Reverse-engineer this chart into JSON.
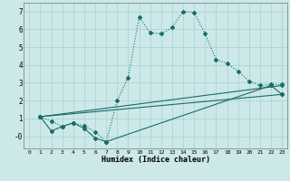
{
  "xlabel": "Humidex (Indice chaleur)",
  "background_color": "#cce8e8",
  "line_color": "#1a6b6b",
  "xlim": [
    -0.5,
    23.5
  ],
  "ylim": [
    -0.7,
    7.5
  ],
  "yticks": [
    0,
    1,
    2,
    3,
    4,
    5,
    6,
    7
  ],
  "ytick_labels": [
    "-0",
    "1",
    "2",
    "3",
    "4",
    "5",
    "6",
    "7"
  ],
  "xticks": [
    0,
    1,
    2,
    3,
    4,
    5,
    6,
    7,
    8,
    9,
    10,
    11,
    12,
    13,
    14,
    15,
    16,
    17,
    18,
    19,
    20,
    21,
    22,
    23
  ],
  "series1_x": [
    1,
    2,
    3,
    4,
    5,
    6,
    7,
    8,
    9,
    10,
    11,
    12,
    13,
    14,
    15,
    16,
    17,
    18,
    19,
    20,
    21,
    22,
    23
  ],
  "series1_y": [
    1.1,
    0.85,
    0.55,
    0.75,
    0.6,
    0.25,
    -0.3,
    2.0,
    3.3,
    6.7,
    5.8,
    5.75,
    6.1,
    7.0,
    6.95,
    5.75,
    4.3,
    4.1,
    3.65,
    3.1,
    2.85,
    2.9,
    2.9
  ],
  "series2_x": [
    1,
    2,
    3,
    4,
    5,
    6,
    7,
    22,
    23
  ],
  "series2_y": [
    1.1,
    0.3,
    0.55,
    0.75,
    0.45,
    -0.1,
    -0.3,
    2.85,
    2.35
  ],
  "series3_x": [
    1,
    23
  ],
  "series3_y": [
    1.1,
    2.35
  ],
  "series4_x": [
    1,
    23
  ],
  "series4_y": [
    1.1,
    2.85
  ]
}
